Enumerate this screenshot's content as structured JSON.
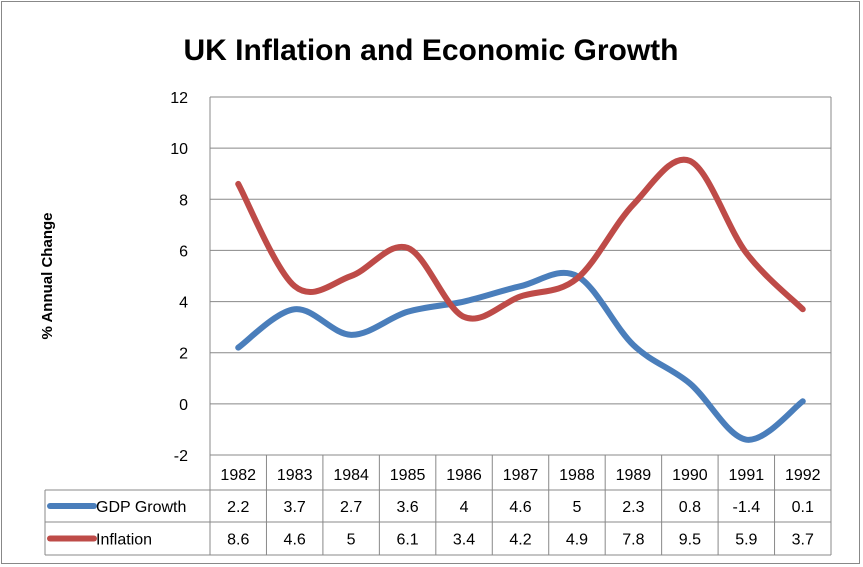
{
  "chart_data": {
    "type": "line",
    "title": "UK Inflation and Economic Growth",
    "ylabel": "% Annual Change",
    "xlabel": "",
    "categories": [
      "1982",
      "1983",
      "1984",
      "1985",
      "1986",
      "1987",
      "1988",
      "1989",
      "1990",
      "1991",
      "1992"
    ],
    "ylim": [
      -2,
      12
    ],
    "yticks": [
      -2,
      0,
      2,
      4,
      6,
      8,
      10,
      12
    ],
    "grid": true,
    "smoothed": true,
    "legend": "data-table",
    "series": [
      {
        "name": "GDP Growth",
        "color": "#4a7ebb",
        "values": [
          2.2,
          3.7,
          2.7,
          3.6,
          4,
          4.6,
          5,
          2.3,
          0.8,
          -1.4,
          0.1
        ]
      },
      {
        "name": "Inflation",
        "color": "#be4b48",
        "values": [
          8.6,
          4.6,
          5,
          6.1,
          3.4,
          4.2,
          4.9,
          7.8,
          9.5,
          5.9,
          3.7
        ]
      }
    ]
  }
}
